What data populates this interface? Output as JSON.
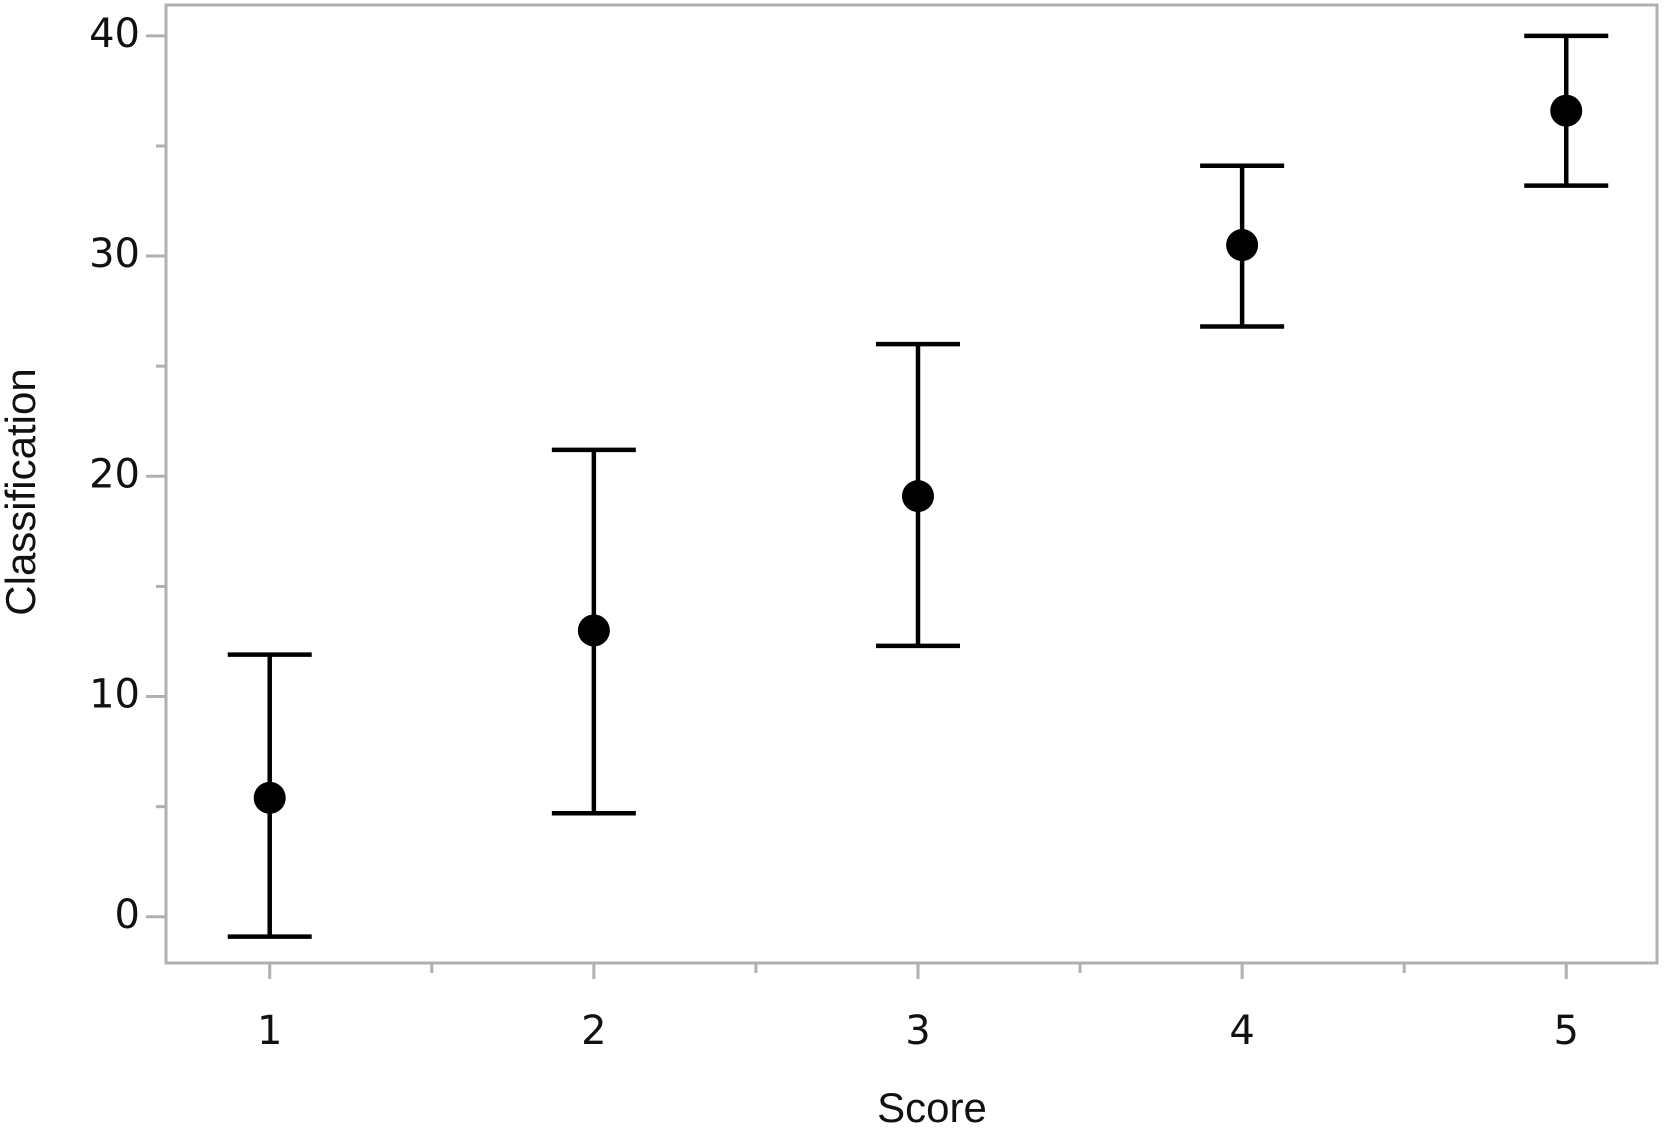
{
  "chart_data": {
    "type": "errorbar",
    "x_label": "Score",
    "y_label": "Classification",
    "x": [
      1,
      2,
      3,
      4,
      5
    ],
    "series": [
      {
        "color": "#000000",
        "values": [
          5.4,
          13.0,
          19.1,
          30.5,
          36.6
        ],
        "lower": [
          -0.9,
          4.7,
          12.3,
          26.8,
          33.2
        ],
        "upper": [
          11.9,
          21.2,
          26.0,
          34.1,
          40.0
        ]
      }
    ],
    "xlim": [
      0.68,
      5.28
    ],
    "xticks": [
      1,
      2,
      3,
      4,
      5
    ],
    "xminorticks": [
      1.5,
      2.5,
      3.5,
      4.5
    ],
    "ylim": [
      -2.1,
      41.4
    ],
    "yticks": [
      0,
      10,
      20,
      30,
      40
    ],
    "yminorticks": [
      5,
      15,
      25,
      35
    ]
  }
}
